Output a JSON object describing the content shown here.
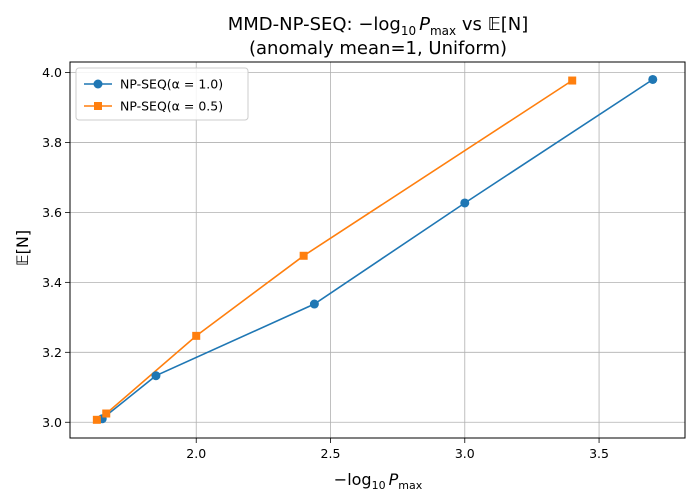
{
  "chart_data": {
    "type": "line",
    "title_line1": "MMD-NP-SEQ: −log",
    "title_sub": "10",
    "title_var": "P",
    "title_var_sub": "max",
    "title_rest": " vs 𝔼[N]",
    "title_line2": "(anomaly mean=1, Uniform)",
    "xlabel_prefix": "−log",
    "xlabel_sub": "10",
    "xlabel_var": "P",
    "xlabel_var_sub": "max",
    "ylabel": "𝔼[N]",
    "xlim": [
      1.53,
      3.82
    ],
    "ylim": [
      2.955,
      4.03
    ],
    "xticks": [
      2.0,
      2.5,
      3.0,
      3.5
    ],
    "xtick_labels": [
      "2.0",
      "2.5",
      "3.0",
      "3.5"
    ],
    "yticks": [
      3.0,
      3.2,
      3.4,
      3.6,
      3.8,
      4.0
    ],
    "ytick_labels": [
      "3.0",
      "3.2",
      "3.4",
      "3.6",
      "3.8",
      "4.0"
    ],
    "grid": true,
    "legend_position": "top-left",
    "series": [
      {
        "name": "NP-SEQ(α = 1.0)",
        "color": "#1f77b4",
        "marker": "circle",
        "x": [
          1.65,
          1.85,
          2.44,
          3.0,
          3.7
        ],
        "y": [
          3.01,
          3.133,
          3.338,
          3.627,
          3.98
        ]
      },
      {
        "name": "NP-SEQ(α = 0.5)",
        "color": "#ff7f0e",
        "marker": "square",
        "x": [
          1.63,
          1.665,
          2.0,
          2.4,
          3.4
        ],
        "y": [
          3.007,
          3.025,
          3.247,
          3.476,
          3.977
        ]
      }
    ]
  }
}
